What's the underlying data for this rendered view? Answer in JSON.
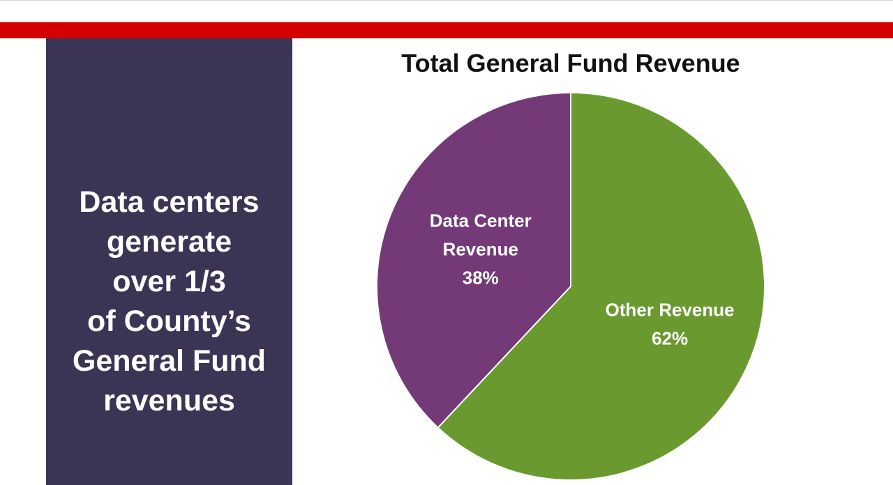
{
  "slide": {
    "headline_lines": [
      "Data centers",
      "generate",
      "over 1/3",
      "of County’s",
      "General Fund",
      "revenues"
    ],
    "colors": {
      "accent_bar": "#d40000",
      "side_panel": "#3b3455"
    }
  },
  "chart_data": {
    "type": "pie",
    "title": "Total General Fund Revenue",
    "start_angle_deg": 0,
    "direction": "clockwise",
    "slices": [
      {
        "label": "Other Revenue",
        "value": 62,
        "display": "62%",
        "color": "#6a9a2f"
      },
      {
        "label": "Data Center Revenue",
        "label_lines": [
          "Data Center",
          "Revenue"
        ],
        "value": 38,
        "display": "38%",
        "color": "#743a78"
      }
    ]
  }
}
